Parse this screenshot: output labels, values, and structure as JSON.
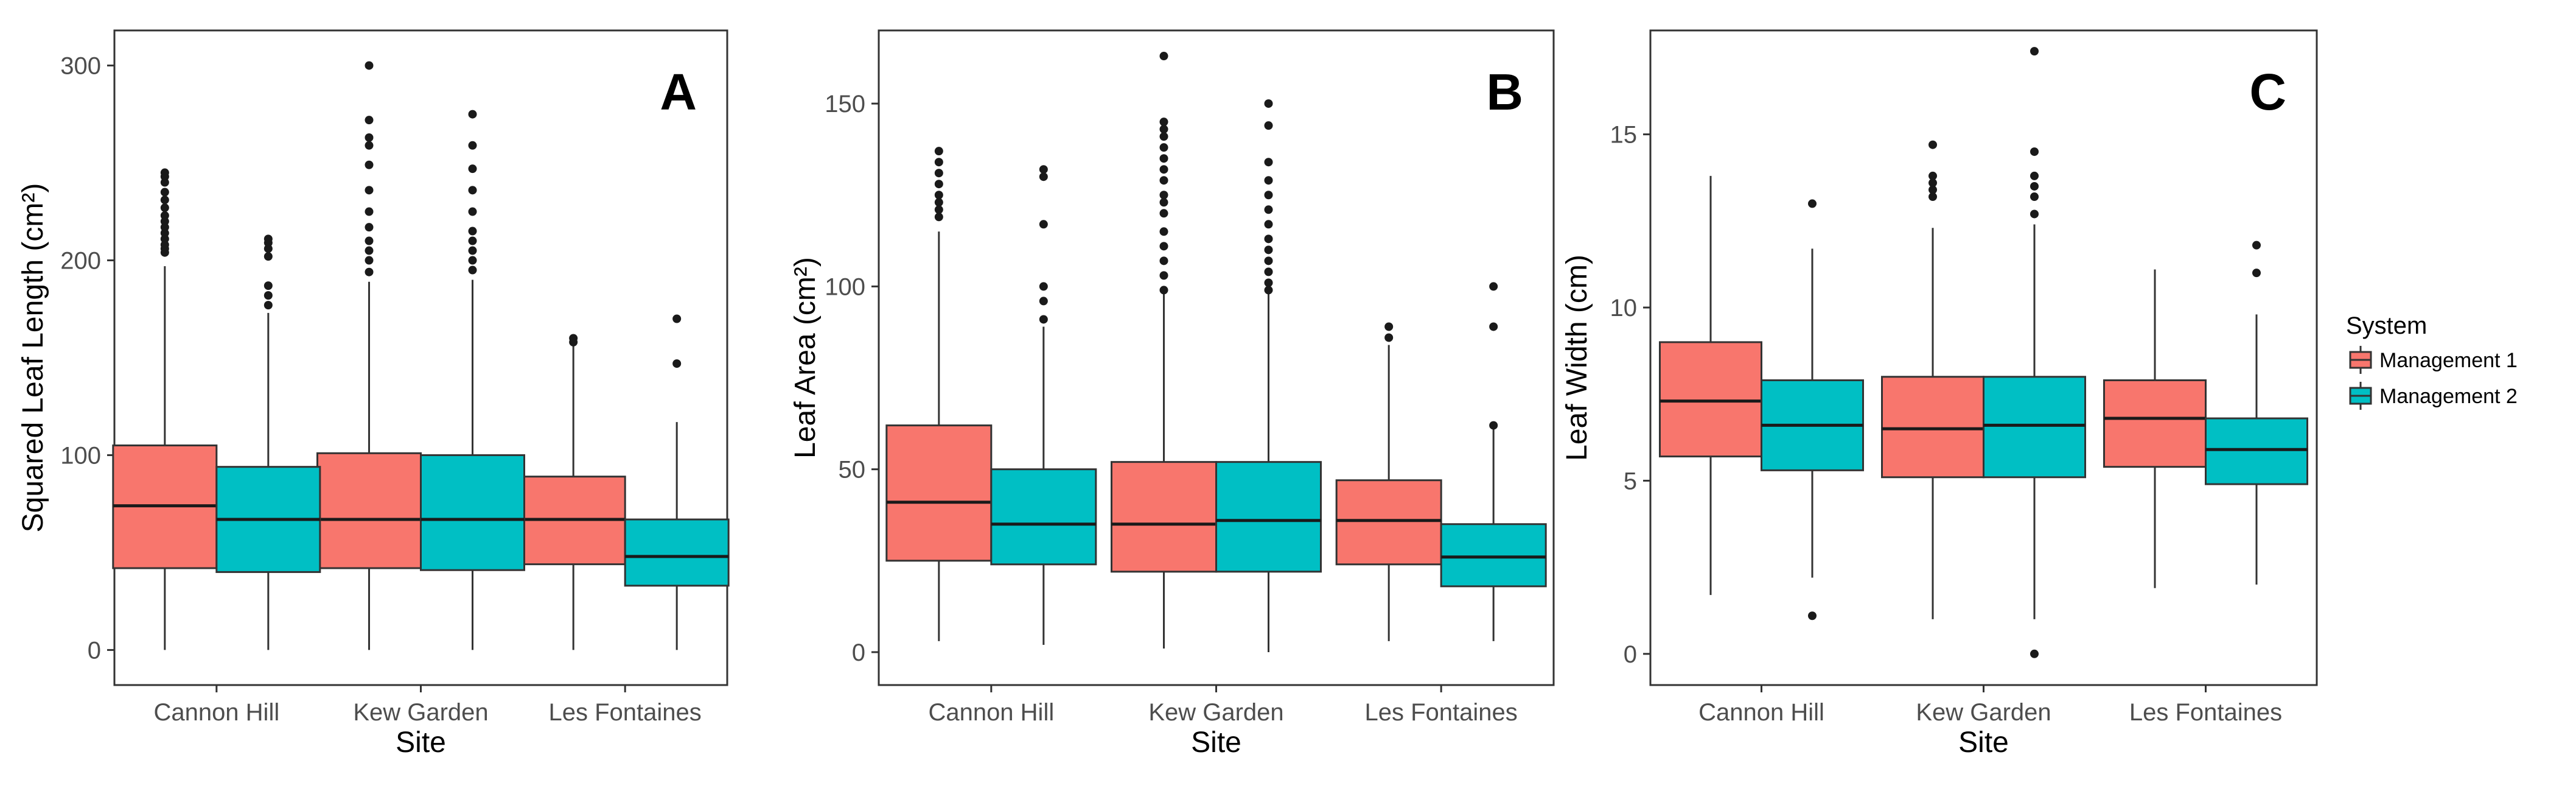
{
  "legend": {
    "title": "System",
    "entries": [
      {
        "label": "Management 1",
        "color": "#F8766D"
      },
      {
        "label": "Management 2",
        "color": "#00BFC4"
      }
    ]
  },
  "chart_data": [
    {
      "type": "boxplot",
      "panel_label": "A",
      "xlabel": "Site",
      "ylabel": "Squared Leaf Length (cm²)",
      "ylim": [
        -18,
        318
      ],
      "yticks": [
        0,
        100,
        200,
        300
      ],
      "categories": [
        "Cannon Hill",
        "Kew Garden",
        "Les Fontaines"
      ],
      "series": [
        {
          "name": "Management 1",
          "boxes": [
            {
              "min": 0,
              "q1": 42,
              "median": 74,
              "q3": 105,
              "max": 197,
              "outliers": [
                204,
                206,
                208,
                211,
                214,
                217,
                220,
                223,
                227,
                231,
                235,
                240,
                243,
                245
              ]
            },
            {
              "min": 0,
              "q1": 42,
              "median": 67,
              "q3": 101,
              "max": 189,
              "outliers": [
                194,
                200,
                205,
                210,
                217,
                225,
                236,
                249,
                259,
                263,
                272,
                300
              ]
            },
            {
              "min": 0,
              "q1": 44,
              "median": 67,
              "q3": 89,
              "max": 156,
              "outliers": [
                158,
                160
              ]
            }
          ]
        },
        {
          "name": "Management 2",
          "boxes": [
            {
              "min": 0,
              "q1": 40,
              "median": 67,
              "q3": 94,
              "max": 173,
              "outliers": [
                177,
                182,
                187,
                202,
                206,
                209,
                211
              ]
            },
            {
              "min": 0,
              "q1": 41,
              "median": 67,
              "q3": 100,
              "max": 190,
              "outliers": [
                195,
                200,
                205,
                210,
                215,
                225,
                236,
                247,
                259,
                275
              ]
            },
            {
              "min": 0,
              "q1": 33,
              "median": 48,
              "q3": 67,
              "max": 117,
              "outliers": [
                147,
                170
              ]
            }
          ]
        }
      ]
    },
    {
      "type": "boxplot",
      "panel_label": "B",
      "xlabel": "Site",
      "ylabel": "Leaf Area (cm²)",
      "ylim": [
        -9,
        170
      ],
      "yticks": [
        0,
        50,
        100,
        150
      ],
      "categories": [
        "Cannon Hill",
        "Kew Garden",
        "Les Fontaines"
      ],
      "series": [
        {
          "name": "Management 1",
          "boxes": [
            {
              "min": 3,
              "q1": 25,
              "median": 41,
              "q3": 62,
              "max": 115,
              "outliers": [
                119,
                121,
                123,
                125,
                128,
                131,
                134,
                137
              ]
            },
            {
              "min": 1,
              "q1": 22,
              "median": 35,
              "q3": 52,
              "max": 98,
              "outliers": [
                99,
                103,
                107,
                111,
                115,
                120,
                123,
                125,
                129,
                132,
                135,
                138,
                141,
                143,
                145,
                163
              ]
            },
            {
              "min": 3,
              "q1": 24,
              "median": 36,
              "q3": 47,
              "max": 84,
              "outliers": [
                86,
                89
              ]
            }
          ]
        },
        {
          "name": "Management 2",
          "boxes": [
            {
              "min": 2,
              "q1": 24,
              "median": 35,
              "q3": 50,
              "max": 89,
              "outliers": [
                91,
                96,
                100,
                117,
                130,
                132
              ]
            },
            {
              "min": 0,
              "q1": 22,
              "median": 36,
              "q3": 52,
              "max": 98,
              "outliers": [
                99,
                101,
                104,
                107,
                110,
                113,
                117,
                121,
                125,
                129,
                134,
                144,
                150
              ]
            },
            {
              "min": 3,
              "q1": 18,
              "median": 26,
              "q3": 35,
              "max": 61,
              "outliers": [
                62,
                89,
                100
              ]
            }
          ]
        }
      ]
    },
    {
      "type": "boxplot",
      "panel_label": "C",
      "xlabel": "Site",
      "ylabel": "Leaf Width (cm)",
      "ylim": [
        -0.9,
        18
      ],
      "yticks": [
        0,
        5,
        10,
        15
      ],
      "categories": [
        "Cannon Hill",
        "Kew Garden",
        "Les Fontaines"
      ],
      "series": [
        {
          "name": "Management 1",
          "boxes": [
            {
              "min": 1.7,
              "q1": 5.7,
              "median": 7.3,
              "q3": 9.0,
              "max": 13.8,
              "outliers": []
            },
            {
              "min": 1.0,
              "q1": 5.1,
              "median": 6.5,
              "q3": 8.0,
              "max": 12.3,
              "outliers": [
                13.2,
                13.4,
                13.6,
                13.8,
                14.7
              ]
            },
            {
              "min": 1.9,
              "q1": 5.4,
              "median": 6.8,
              "q3": 7.9,
              "max": 11.1,
              "outliers": []
            }
          ]
        },
        {
          "name": "Management 2",
          "boxes": [
            {
              "min": 2.2,
              "q1": 5.3,
              "median": 6.6,
              "q3": 7.9,
              "max": 11.7,
              "outliers": [
                1.1,
                13.0
              ]
            },
            {
              "min": 1.0,
              "q1": 5.1,
              "median": 6.6,
              "q3": 8.0,
              "max": 12.4,
              "outliers": [
                0.0,
                12.7,
                13.2,
                13.5,
                13.8,
                14.5,
                17.4
              ]
            },
            {
              "min": 2.0,
              "q1": 4.9,
              "median": 5.9,
              "q3": 6.8,
              "max": 9.8,
              "outliers": [
                11.0,
                11.8
              ]
            }
          ]
        }
      ]
    }
  ]
}
